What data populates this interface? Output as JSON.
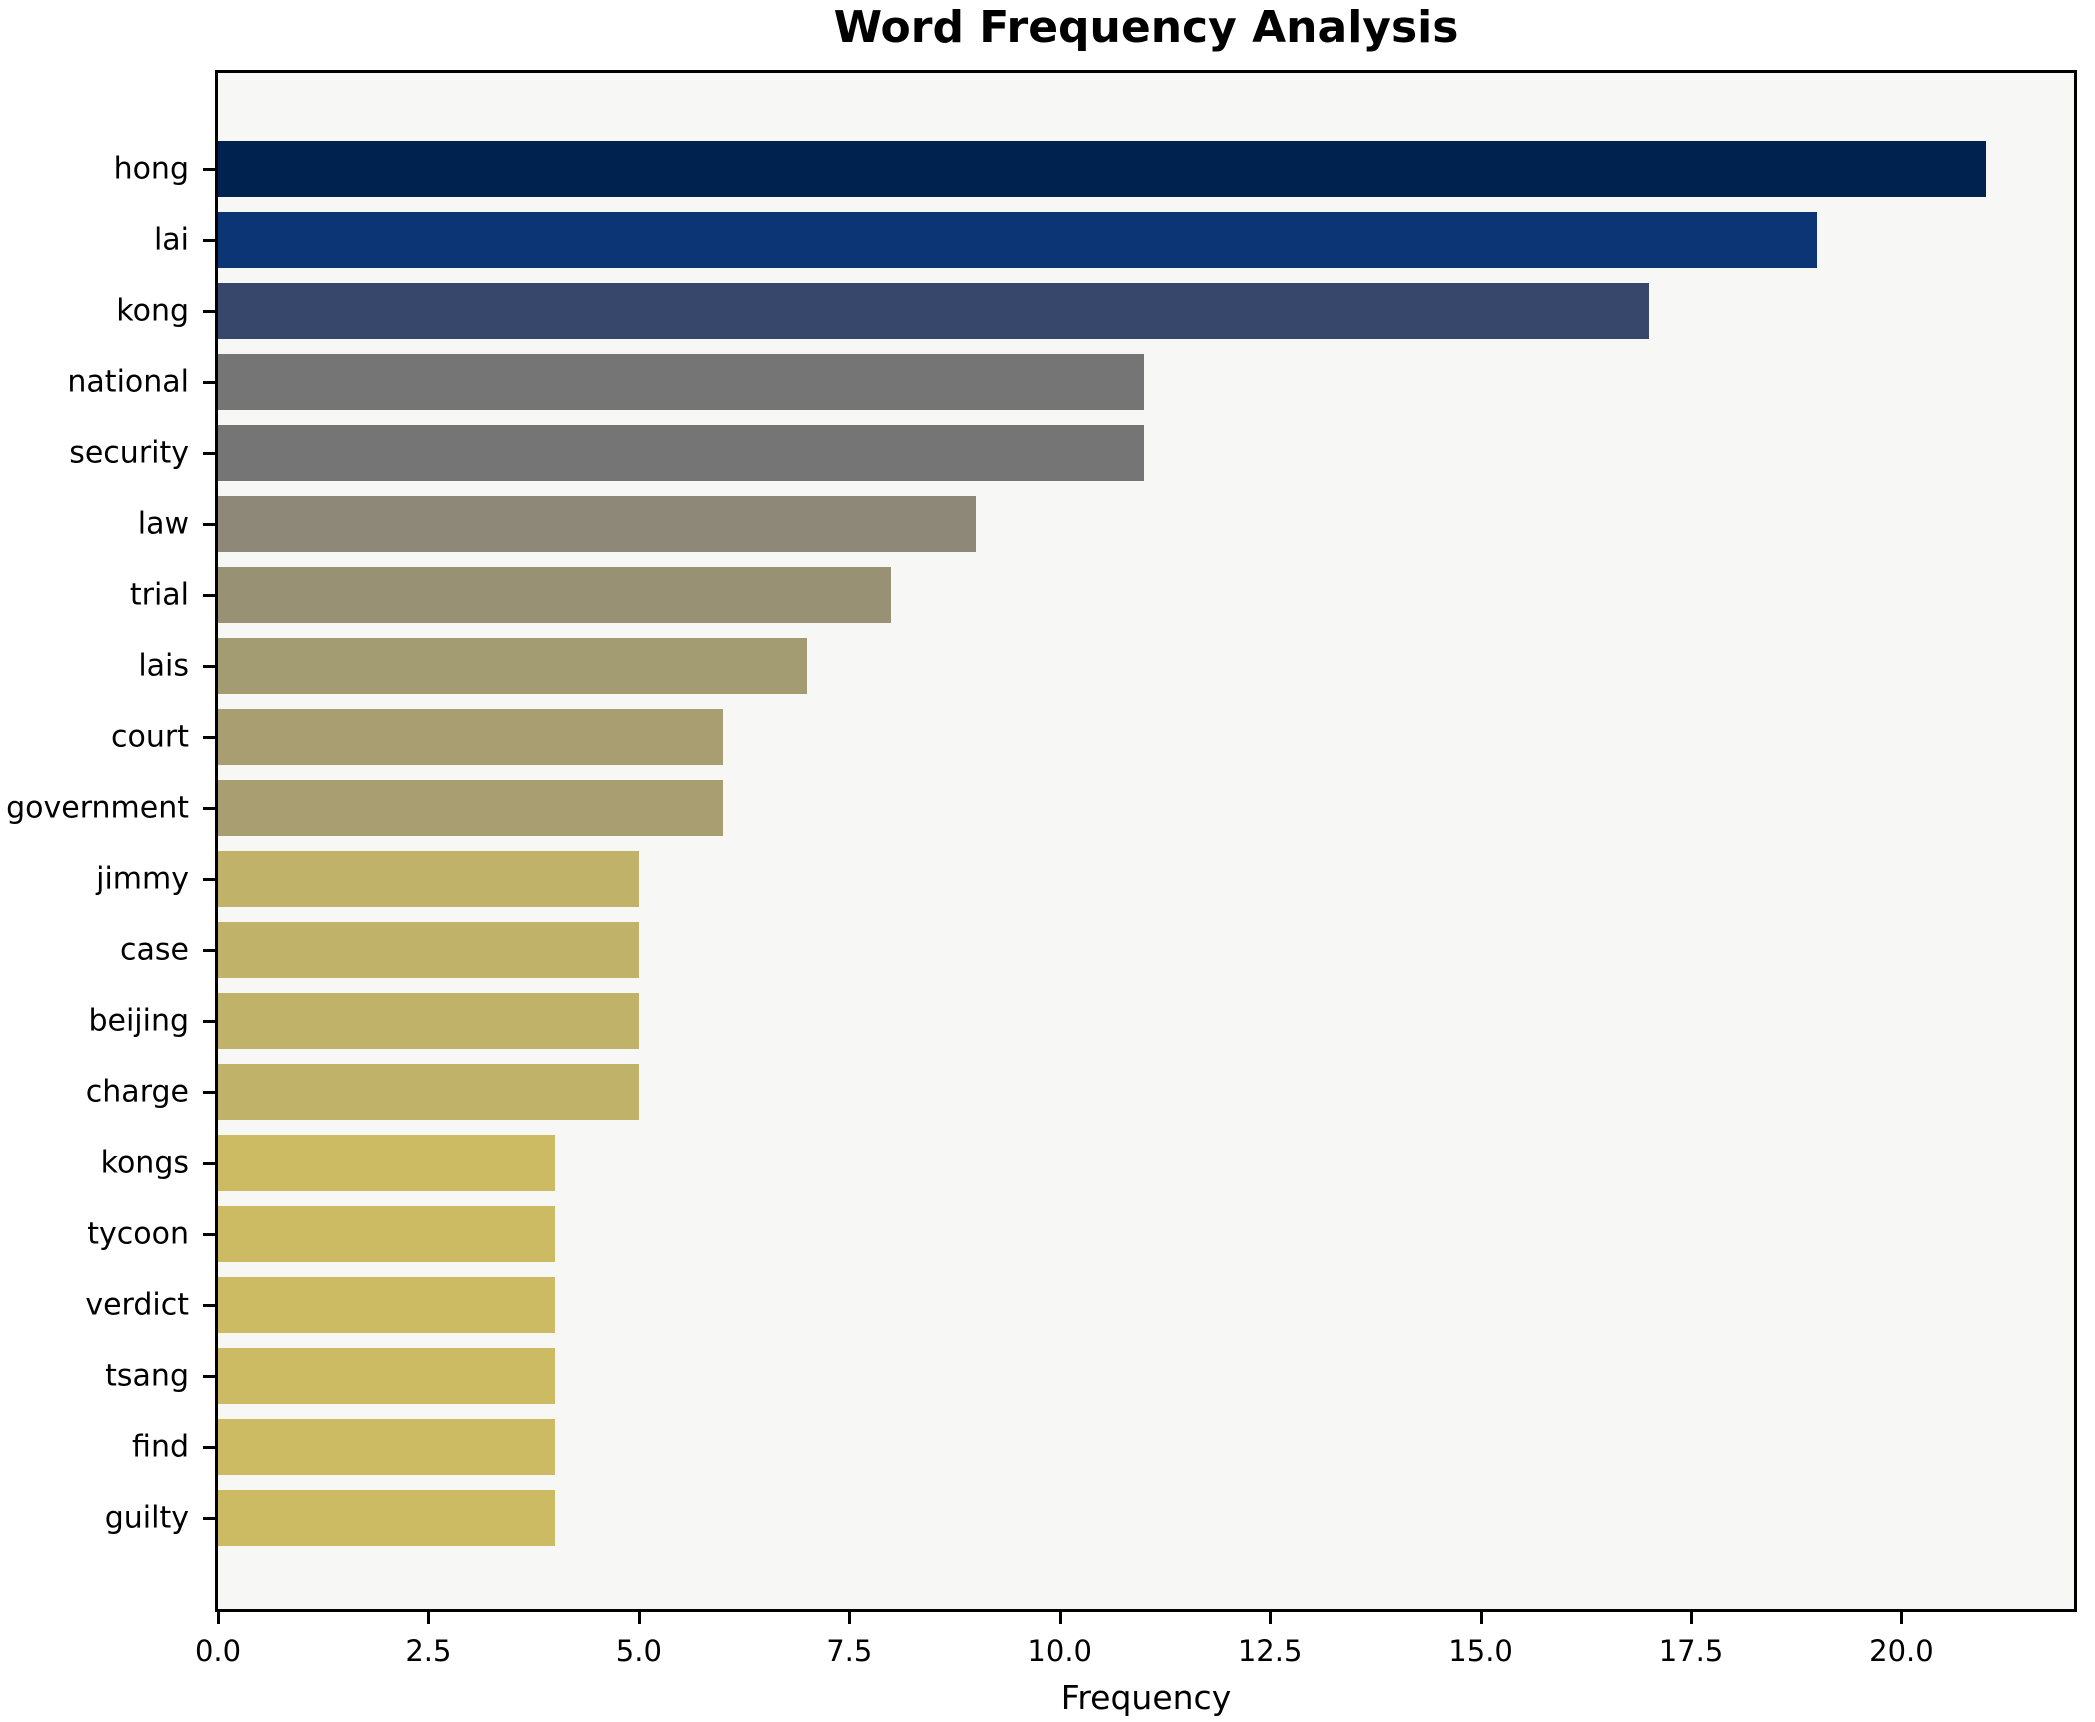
{
  "title": "Word Frequency Analysis",
  "chart_data": {
    "type": "bar",
    "orientation": "horizontal",
    "title": "Word Frequency Analysis",
    "xlabel": "Frequency",
    "ylabel": "",
    "categories": [
      "hong",
      "lai",
      "kong",
      "national",
      "security",
      "law",
      "trial",
      "lais",
      "court",
      "government",
      "jimmy",
      "case",
      "beijing",
      "charge",
      "kongs",
      "tycoon",
      "verdict",
      "tsang",
      "find",
      "guilty"
    ],
    "values": [
      21,
      19,
      17,
      11,
      11,
      9,
      8,
      7,
      6,
      6,
      5,
      5,
      5,
      5,
      4,
      4,
      4,
      4,
      4,
      4
    ],
    "bar_colors": [
      "#00224e",
      "#0b3574",
      "#37476c",
      "#757575",
      "#757575",
      "#8e8878",
      "#989173",
      "#a39b72",
      "#a89e71",
      "#a89e71",
      "#c0b269",
      "#c0b269",
      "#c0b269",
      "#c0b269",
      "#ccbb63",
      "#ccbb63",
      "#ccbb63",
      "#ccbb63",
      "#ccbb63",
      "#ccbb63"
    ],
    "xlim": [
      0,
      22.05
    ],
    "xticks": [
      0.0,
      2.5,
      5.0,
      7.5,
      10.0,
      12.5,
      15.0,
      17.5,
      20.0
    ],
    "xtick_labels": [
      "0.0",
      "2.5",
      "5.0",
      "7.5",
      "10.0",
      "12.5",
      "15.0",
      "17.5",
      "20.0"
    ],
    "grid": false,
    "legend": false,
    "colormap": "cividis-reversed-by-value",
    "plot_background": "#f7f7f6",
    "figure_background": "#ffffff",
    "text_color": "#000000"
  }
}
